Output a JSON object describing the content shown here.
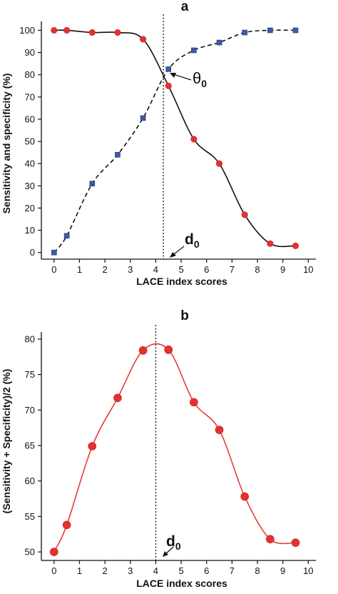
{
  "chart_data": [
    {
      "panel": "a",
      "type": "line",
      "xlabel": "LACE index scores",
      "ylabel": "Sensitivity and specificity (%)",
      "xlim": [
        -0.5,
        10.3
      ],
      "ylim": [
        -3,
        104
      ],
      "xticks": [
        0,
        1,
        2,
        3,
        4,
        5,
        6,
        7,
        8,
        9,
        10
      ],
      "yticks": [
        0,
        10,
        20,
        30,
        40,
        50,
        60,
        70,
        80,
        90,
        100
      ],
      "grid": false,
      "vline_x": 4.3,
      "annotations": {
        "theta": "θ",
        "theta_sub": "0",
        "d": "d",
        "d_sub": "0"
      },
      "series": [
        {
          "marker": "circle",
          "line_style": "solid",
          "color": "#e8302f",
          "line_color": "#111111",
          "x": [
            0,
            0.5,
            1.5,
            2.5,
            3.5,
            4.5,
            5.5,
            6.5,
            7.5,
            8.5,
            9.5
          ],
          "values": [
            100,
            100,
            99,
            99,
            96,
            75,
            51,
            40,
            17,
            4,
            3
          ]
        },
        {
          "marker": "square",
          "line_style": "dashed",
          "color": "#3b5ba8",
          "line_color": "#111111",
          "x": [
            0,
            0.5,
            1.5,
            2.5,
            3.5,
            4.5,
            5.5,
            6.5,
            7.5,
            8.5,
            9.5
          ],
          "values": [
            0,
            7.5,
            31,
            44,
            60.5,
            82.5,
            91,
            94.5,
            99,
            100,
            100
          ]
        }
      ]
    },
    {
      "panel": "b",
      "type": "line",
      "xlabel": "LACE index scores",
      "ylabel": "(Sensitivity + Specificity)/2 (%)",
      "xlim": [
        -0.5,
        10.3
      ],
      "ylim": [
        48.8,
        81
      ],
      "xticks": [
        0,
        1,
        2,
        3,
        4,
        5,
        6,
        7,
        8,
        9,
        10
      ],
      "yticks": [
        50,
        55,
        60,
        65,
        70,
        75,
        80
      ],
      "grid": false,
      "vline_x": 4.0,
      "annotations": {
        "d": "d",
        "d_sub": "0"
      },
      "series": [
        {
          "marker": "circle",
          "line_style": "solid",
          "color": "#e8302f",
          "line_color": "#e8302f",
          "x": [
            0,
            0.5,
            1.5,
            2.5,
            3.5,
            4.5,
            5.5,
            6.5,
            7.5,
            8.5,
            9.5
          ],
          "values": [
            50,
            53.8,
            64.9,
            71.7,
            78.4,
            78.5,
            71.1,
            67.2,
            57.8,
            51.8,
            51.3
          ]
        }
      ]
    }
  ]
}
